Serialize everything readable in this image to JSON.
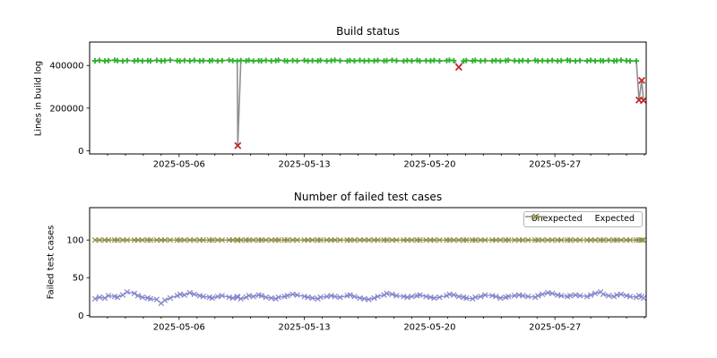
{
  "figure": {
    "background": "#ffffff"
  },
  "chart_data": [
    {
      "type": "line",
      "title": "Build status",
      "xlabel": "",
      "ylabel": "Lines in build log",
      "grid": false,
      "x_unit": "days since 2025-05-01 00:00",
      "xlim": [
        0,
        31.1
      ],
      "ylim": [
        -15000,
        510000
      ],
      "y_ticks": [
        {
          "value": 0,
          "label": "0"
        },
        {
          "value": 200000,
          "label": "200000"
        },
        {
          "value": 400000,
          "label": "400000"
        }
      ],
      "x_ticks": [
        {
          "day": 5,
          "label": "2025-05-06"
        },
        {
          "day": 12,
          "label": "2025-05-13"
        },
        {
          "day": 19,
          "label": "2025-05-20"
        },
        {
          "day": 26,
          "label": "2025-05-27"
        }
      ],
      "x_minor_tick_every_days": 1,
      "line_color": "#8f8f8f",
      "marker_ok": {
        "shape": "plus",
        "color": "#2db32d",
        "meaning": "successful build"
      },
      "marker_fail": {
        "shape": "x",
        "color": "#c32424",
        "meaning": "failed/short build"
      },
      "points": [
        [
          0.3,
          422000,
          "ok"
        ],
        [
          0.55,
          424000,
          "ok"
        ],
        [
          0.85,
          421500,
          "ok"
        ],
        [
          1.05,
          423000,
          "ok"
        ],
        [
          1.4,
          425000,
          "ok"
        ],
        [
          1.55,
          422500,
          "ok"
        ],
        [
          1.85,
          421000,
          "ok"
        ],
        [
          2.1,
          423500,
          "ok"
        ],
        [
          2.5,
          422000,
          "ok"
        ],
        [
          2.7,
          424500,
          "ok"
        ],
        [
          2.95,
          421500,
          "ok"
        ],
        [
          3.25,
          423000,
          "ok"
        ],
        [
          3.4,
          422000,
          "ok"
        ],
        [
          3.75,
          424000,
          "ok"
        ],
        [
          4.0,
          421500,
          "ok"
        ],
        [
          4.2,
          423000,
          "ok"
        ],
        [
          4.5,
          425000,
          "ok"
        ],
        [
          4.9,
          422500,
          "ok"
        ],
        [
          5.05,
          421000,
          "ok"
        ],
        [
          5.3,
          423500,
          "ok"
        ],
        [
          5.6,
          422000,
          "ok"
        ],
        [
          5.85,
          424500,
          "ok"
        ],
        [
          6.15,
          421500,
          "ok"
        ],
        [
          6.35,
          423000,
          "ok"
        ],
        [
          6.7,
          422000,
          "ok"
        ],
        [
          6.85,
          424000,
          "ok"
        ],
        [
          7.15,
          421500,
          "ok"
        ],
        [
          7.4,
          423000,
          "ok"
        ],
        [
          7.8,
          425000,
          "ok"
        ],
        [
          8.0,
          422500,
          "ok"
        ],
        [
          8.25,
          421000,
          "ok"
        ],
        [
          8.28,
          24000,
          "fail"
        ],
        [
          8.45,
          423500,
          "ok"
        ],
        [
          8.75,
          422000,
          "ok"
        ],
        [
          8.9,
          424500,
          "ok"
        ],
        [
          9.15,
          421500,
          "ok"
        ],
        [
          9.45,
          423000,
          "ok"
        ],
        [
          9.6,
          422000,
          "ok"
        ],
        [
          9.85,
          424000,
          "ok"
        ],
        [
          10.15,
          421500,
          "ok"
        ],
        [
          10.4,
          423000,
          "ok"
        ],
        [
          10.55,
          425000,
          "ok"
        ],
        [
          10.9,
          422500,
          "ok"
        ],
        [
          11.05,
          421000,
          "ok"
        ],
        [
          11.35,
          423500,
          "ok"
        ],
        [
          11.6,
          422000,
          "ok"
        ],
        [
          12.0,
          424500,
          "ok"
        ],
        [
          12.2,
          421500,
          "ok"
        ],
        [
          12.45,
          423000,
          "ok"
        ],
        [
          12.75,
          422000,
          "ok"
        ],
        [
          12.9,
          424000,
          "ok"
        ],
        [
          13.25,
          421500,
          "ok"
        ],
        [
          13.5,
          423000,
          "ok"
        ],
        [
          13.7,
          425000,
          "ok"
        ],
        [
          14.0,
          422500,
          "ok"
        ],
        [
          14.4,
          421000,
          "ok"
        ],
        [
          14.55,
          423500,
          "ok"
        ],
        [
          14.8,
          422000,
          "ok"
        ],
        [
          15.1,
          424500,
          "ok"
        ],
        [
          15.35,
          421500,
          "ok"
        ],
        [
          15.6,
          423000,
          "ok"
        ],
        [
          15.9,
          422000,
          "ok"
        ],
        [
          16.1,
          424000,
          "ok"
        ],
        [
          16.45,
          421500,
          "ok"
        ],
        [
          16.6,
          423000,
          "ok"
        ],
        [
          16.9,
          425000,
          "ok"
        ],
        [
          17.15,
          422500,
          "ok"
        ],
        [
          17.55,
          421000,
          "ok"
        ],
        [
          17.75,
          423500,
          "ok"
        ],
        [
          18.0,
          422000,
          "ok"
        ],
        [
          18.3,
          424500,
          "ok"
        ],
        [
          18.45,
          421500,
          "ok"
        ],
        [
          18.8,
          423000,
          "ok"
        ],
        [
          19.05,
          422000,
          "ok"
        ],
        [
          19.25,
          424000,
          "ok"
        ],
        [
          19.55,
          421500,
          "ok"
        ],
        [
          19.95,
          423000,
          "ok"
        ],
        [
          20.1,
          425000,
          "ok"
        ],
        [
          20.35,
          422500,
          "ok"
        ],
        [
          20.63,
          392000,
          "fail"
        ],
        [
          20.9,
          421000,
          "ok"
        ],
        [
          21.05,
          423500,
          "ok"
        ],
        [
          21.4,
          422000,
          "ok"
        ],
        [
          21.55,
          424500,
          "ok"
        ],
        [
          21.85,
          421500,
          "ok"
        ],
        [
          22.1,
          423000,
          "ok"
        ],
        [
          22.5,
          422000,
          "ok"
        ],
        [
          22.7,
          424000,
          "ok"
        ],
        [
          22.95,
          421500,
          "ok"
        ],
        [
          23.25,
          423000,
          "ok"
        ],
        [
          23.4,
          425000,
          "ok"
        ],
        [
          23.75,
          422500,
          "ok"
        ],
        [
          24.0,
          421000,
          "ok"
        ],
        [
          24.2,
          423500,
          "ok"
        ],
        [
          24.5,
          422000,
          "ok"
        ],
        [
          24.9,
          424500,
          "ok"
        ],
        [
          25.05,
          421500,
          "ok"
        ],
        [
          25.3,
          423000,
          "ok"
        ],
        [
          25.6,
          422000,
          "ok"
        ],
        [
          25.85,
          424000,
          "ok"
        ],
        [
          26.15,
          421500,
          "ok"
        ],
        [
          26.35,
          423000,
          "ok"
        ],
        [
          26.7,
          425000,
          "ok"
        ],
        [
          26.85,
          422500,
          "ok"
        ],
        [
          27.15,
          421000,
          "ok"
        ],
        [
          27.4,
          423500,
          "ok"
        ],
        [
          27.8,
          422000,
          "ok"
        ],
        [
          28.0,
          424500,
          "ok"
        ],
        [
          28.25,
          421500,
          "ok"
        ],
        [
          28.55,
          423000,
          "ok"
        ],
        [
          28.7,
          422000,
          "ok"
        ],
        [
          29.0,
          424000,
          "ok"
        ],
        [
          29.3,
          421500,
          "ok"
        ],
        [
          29.45,
          423000,
          "ok"
        ],
        [
          29.7,
          425000,
          "ok"
        ],
        [
          30.0,
          422500,
          "ok"
        ],
        [
          30.2,
          421000,
          "ok"
        ],
        [
          30.55,
          421500,
          "ok"
        ],
        [
          30.7,
          238000,
          "fail"
        ],
        [
          30.85,
          330000,
          "fail"
        ],
        [
          30.95,
          236000,
          "fail"
        ]
      ]
    },
    {
      "type": "line",
      "title": "Number of failed test cases",
      "xlabel": "",
      "ylabel": "Failed test cases",
      "grid": false,
      "x_unit": "days since 2025-05-01 00:00",
      "xlim": [
        0,
        31.1
      ],
      "ylim": [
        -2,
        143
      ],
      "y_ticks": [
        {
          "value": 0,
          "label": "0"
        },
        {
          "value": 50,
          "label": "50"
        },
        {
          "value": 100,
          "label": "100"
        }
      ],
      "x_ticks": [
        {
          "day": 5,
          "label": "2025-05-06"
        },
        {
          "day": 12,
          "label": "2025-05-13"
        },
        {
          "day": 19,
          "label": "2025-05-20"
        },
        {
          "day": 26,
          "label": "2025-05-27"
        }
      ],
      "x_minor_tick_every_days": 1,
      "legend": {
        "position": "upper right"
      },
      "x_days": [
        0.3,
        0.55,
        0.85,
        1.05,
        1.4,
        1.55,
        1.85,
        2.1,
        2.5,
        2.7,
        2.95,
        3.25,
        3.4,
        3.75,
        4.0,
        4.2,
        4.5,
        4.9,
        5.05,
        5.3,
        5.6,
        5.85,
        6.15,
        6.35,
        6.7,
        6.85,
        7.15,
        7.4,
        7.8,
        8.0,
        8.25,
        8.28,
        8.45,
        8.75,
        8.9,
        9.15,
        9.45,
        9.6,
        9.85,
        10.15,
        10.4,
        10.55,
        10.9,
        11.05,
        11.35,
        11.6,
        12.0,
        12.2,
        12.45,
        12.75,
        12.9,
        13.25,
        13.5,
        13.7,
        14.0,
        14.4,
        14.55,
        14.8,
        15.1,
        15.35,
        15.6,
        15.9,
        16.1,
        16.45,
        16.6,
        16.9,
        17.15,
        17.55,
        17.75,
        18.0,
        18.3,
        18.45,
        18.8,
        19.05,
        19.25,
        19.55,
        19.95,
        20.1,
        20.35,
        20.63,
        20.9,
        21.05,
        21.4,
        21.55,
        21.85,
        22.1,
        22.5,
        22.7,
        22.95,
        23.25,
        23.4,
        23.75,
        24.0,
        24.2,
        24.5,
        24.9,
        25.05,
        25.3,
        25.6,
        25.85,
        26.15,
        26.35,
        26.7,
        26.85,
        27.15,
        27.4,
        27.8,
        28.0,
        28.25,
        28.55,
        28.7,
        29.0,
        29.3,
        29.45,
        29.7,
        30.0,
        30.2,
        30.55,
        30.7,
        30.85,
        30.95
      ],
      "series": [
        {
          "name": "Unexpected",
          "color": "#8486cc",
          "marker": "x",
          "values": [
            22,
            24,
            23,
            26,
            25,
            24,
            27,
            31,
            29,
            26,
            24,
            23,
            22,
            21,
            16,
            20,
            23,
            26,
            28,
            27,
            30,
            28,
            26,
            25,
            24,
            23,
            25,
            26,
            24,
            23,
            25,
            24,
            22,
            24,
            26,
            25,
            27,
            26,
            24,
            23,
            22,
            24,
            25,
            26,
            28,
            27,
            25,
            24,
            23,
            22,
            24,
            25,
            26,
            25,
            24,
            26,
            27,
            25,
            23,
            22,
            21,
            23,
            25,
            27,
            29,
            28,
            26,
            25,
            24,
            25,
            26,
            27,
            25,
            24,
            23,
            24,
            26,
            28,
            27,
            25,
            24,
            23,
            22,
            24,
            25,
            27,
            26,
            25,
            23,
            24,
            25,
            26,
            27,
            26,
            25,
            24,
            26,
            28,
            30,
            29,
            27,
            26,
            25,
            26,
            27,
            26,
            25,
            27,
            29,
            31,
            28,
            26,
            25,
            27,
            28,
            26,
            25,
            24,
            26,
            25,
            23
          ]
        },
        {
          "name": "Expected",
          "color": "#8d8d42",
          "marker": "x",
          "values_constant": 100
        }
      ]
    }
  ]
}
